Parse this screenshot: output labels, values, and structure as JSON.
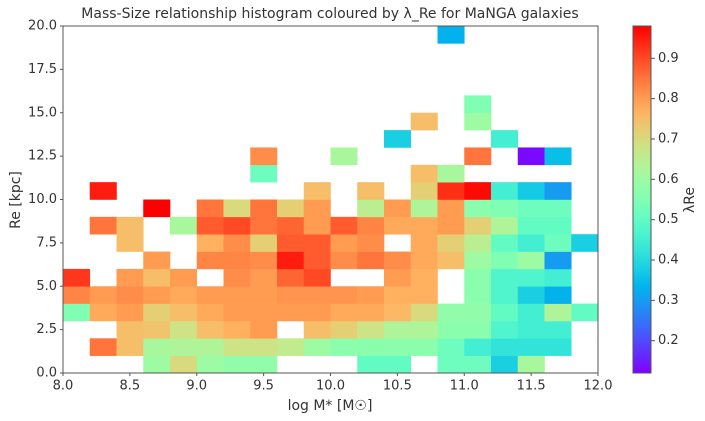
{
  "chart_data": {
    "type": "heatmap",
    "title": "Mass-Size relationship histogram coloured by λ_Re for MaNGA galaxies",
    "x_label": "log M* [M☉]",
    "y_label": "Re [kpc]",
    "colorbar_label": "λRe",
    "cmap": "rainbow",
    "clim": [
      0.12,
      0.98
    ],
    "xbins": [
      8.0,
      8.2,
      8.4,
      8.6,
      8.8,
      9.0,
      9.2,
      9.4,
      9.6,
      9.8,
      10.0,
      10.2,
      10.4,
      10.6,
      10.8,
      11.0,
      11.2,
      11.4,
      11.6,
      11.8,
      12.0
    ],
    "ybins": [
      0,
      1,
      2,
      3,
      4,
      5,
      6,
      7,
      8,
      9,
      10,
      11,
      12,
      13,
      14,
      15,
      16,
      17,
      18,
      19,
      20
    ],
    "z": [
      [
        null,
        null,
        null,
        0.6,
        0.7,
        0.6,
        0.58,
        0.58,
        null,
        null,
        null,
        0.5,
        0.5,
        null,
        0.52,
        0.52,
        0.38,
        0.62,
        null,
        null
      ],
      [
        null,
        0.85,
        0.75,
        0.62,
        0.63,
        0.63,
        0.68,
        0.68,
        0.66,
        0.6,
        0.57,
        0.57,
        0.57,
        0.57,
        0.52,
        0.45,
        0.42,
        0.42,
        0.42,
        null
      ],
      [
        null,
        null,
        0.75,
        0.74,
        0.68,
        0.75,
        0.77,
        0.8,
        null,
        0.75,
        0.72,
        0.68,
        0.63,
        0.63,
        0.57,
        0.57,
        0.47,
        0.45,
        0.45,
        null
      ],
      [
        0.55,
        0.78,
        0.8,
        0.72,
        0.75,
        0.78,
        0.8,
        0.8,
        0.8,
        0.8,
        0.78,
        0.78,
        0.76,
        0.7,
        0.58,
        0.58,
        0.5,
        0.45,
        0.63,
        0.5
      ],
      [
        0.83,
        0.8,
        0.82,
        0.8,
        0.78,
        0.8,
        0.8,
        0.8,
        0.81,
        0.81,
        0.81,
        0.8,
        0.77,
        0.77,
        null,
        0.57,
        0.47,
        0.38,
        0.33,
        null
      ],
      [
        0.92,
        null,
        0.8,
        0.75,
        0.8,
        null,
        0.82,
        0.8,
        0.87,
        0.9,
        null,
        null,
        0.8,
        0.77,
        null,
        0.57,
        0.47,
        0.47,
        0.45,
        null
      ],
      [
        null,
        null,
        null,
        0.8,
        null,
        0.83,
        0.83,
        0.82,
        0.95,
        0.88,
        0.82,
        0.85,
        0.82,
        0.78,
        0.75,
        0.6,
        0.55,
        0.6,
        0.3,
        null
      ],
      [
        null,
        null,
        0.75,
        null,
        null,
        0.77,
        0.82,
        0.72,
        0.88,
        0.88,
        0.8,
        0.82,
        null,
        0.78,
        0.72,
        0.65,
        0.5,
        0.45,
        0.52,
        0.38
      ],
      [
        null,
        0.85,
        0.75,
        null,
        0.62,
        0.88,
        0.9,
        0.85,
        0.87,
        0.8,
        0.88,
        0.83,
        0.78,
        0.78,
        0.8,
        0.72,
        0.63,
        0.5,
        0.5,
        null
      ],
      [
        null,
        null,
        null,
        0.98,
        null,
        0.85,
        0.7,
        0.85,
        0.72,
        0.8,
        null,
        0.65,
        0.8,
        0.63,
        0.8,
        0.57,
        0.55,
        0.52,
        0.52,
        null
      ],
      [
        null,
        0.95,
        null,
        null,
        null,
        null,
        null,
        null,
        null,
        0.75,
        null,
        0.75,
        null,
        0.72,
        0.93,
        0.97,
        0.45,
        0.37,
        0.3,
        null
      ],
      [
        null,
        null,
        null,
        null,
        null,
        null,
        null,
        0.52,
        null,
        null,
        null,
        null,
        null,
        0.75,
        0.62,
        null,
        null,
        null,
        null,
        null
      ],
      [
        null,
        null,
        null,
        null,
        null,
        null,
        null,
        0.82,
        null,
        null,
        0.62,
        null,
        null,
        null,
        null,
        0.85,
        null,
        0.13,
        0.35,
        null
      ],
      [
        null,
        null,
        null,
        null,
        null,
        null,
        null,
        null,
        null,
        null,
        null,
        null,
        0.38,
        null,
        null,
        null,
        0.45,
        null,
        null,
        null
      ],
      [
        null,
        null,
        null,
        null,
        null,
        null,
        null,
        null,
        null,
        null,
        null,
        null,
        null,
        0.75,
        null,
        0.6,
        null,
        null,
        null,
        null
      ],
      [
        null,
        null,
        null,
        null,
        null,
        null,
        null,
        null,
        null,
        null,
        null,
        null,
        null,
        null,
        null,
        0.55,
        null,
        null,
        null,
        null
      ],
      [
        null,
        null,
        null,
        null,
        null,
        null,
        null,
        null,
        null,
        null,
        null,
        null,
        null,
        null,
        null,
        null,
        null,
        null,
        null,
        null
      ],
      [
        null,
        null,
        null,
        null,
        null,
        null,
        null,
        null,
        null,
        null,
        null,
        null,
        null,
        null,
        null,
        null,
        null,
        null,
        null,
        null
      ],
      [
        null,
        null,
        null,
        null,
        null,
        null,
        null,
        null,
        null,
        null,
        null,
        null,
        null,
        null,
        null,
        null,
        null,
        null,
        null,
        null
      ],
      [
        null,
        null,
        null,
        null,
        null,
        null,
        null,
        null,
        null,
        null,
        null,
        null,
        null,
        null,
        0.33,
        null,
        null,
        null,
        null,
        null
      ]
    ],
    "xlim": [
      8.0,
      12.0
    ],
    "xticks": [
      {
        "value": 8.0,
        "label": "8.0"
      },
      {
        "value": 8.5,
        "label": "8.5"
      },
      {
        "value": 9.0,
        "label": "9.0"
      },
      {
        "value": 9.5,
        "label": "9.5"
      },
      {
        "value": 10.0,
        "label": "10.0"
      },
      {
        "value": 10.5,
        "label": "10.5"
      },
      {
        "value": 11.0,
        "label": "11.0"
      },
      {
        "value": 11.5,
        "label": "11.5"
      },
      {
        "value": 12.0,
        "label": "12.0"
      }
    ],
    "ylim": [
      0,
      20
    ],
    "yticks": [
      {
        "value": 0,
        "label": "0.0"
      },
      {
        "value": 2.5,
        "label": "2.5"
      },
      {
        "value": 5,
        "label": "5.0"
      },
      {
        "value": 7.5,
        "label": "7.5"
      },
      {
        "value": 10,
        "label": "10.0"
      },
      {
        "value": 12.5,
        "label": "12.5"
      },
      {
        "value": 15,
        "label": "15.0"
      },
      {
        "value": 17.5,
        "label": "17.5"
      },
      {
        "value": 20,
        "label": "20.0"
      }
    ],
    "cticks": [
      0.2,
      0.3,
      0.4,
      0.5,
      0.6,
      0.7,
      0.8,
      0.9
    ],
    "grid": false
  }
}
